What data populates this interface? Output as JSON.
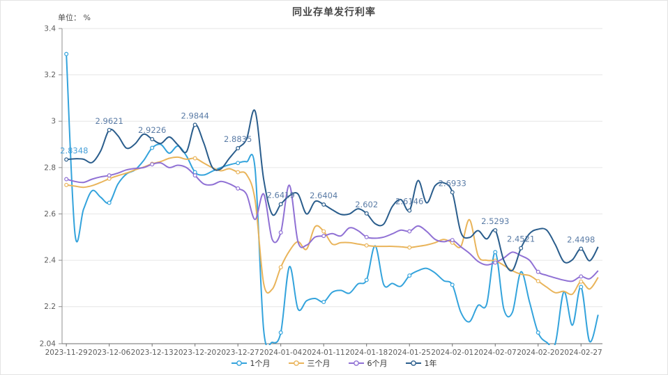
{
  "title": "同业存单发行利率",
  "unit_label": "单位： %",
  "styles": {
    "grid_color": "#e6e6e6",
    "axis_color": "#8f8f8f",
    "tick_text_color": "#5c5c5c",
    "point_label_color": "#5b7ca6",
    "first_point_label_color": "#48a0d8",
    "background": "#ffffff"
  },
  "chart_data": {
    "type": "line",
    "smooth": true,
    "grid": true,
    "legend_position": "bottom",
    "ylim": [
      2.04,
      3.4
    ],
    "y_ticks": [
      {
        "v": 3.4,
        "label": "3.4"
      },
      {
        "v": 3.2,
        "label": "3.2"
      },
      {
        "v": 3.0,
        "label": "3"
      },
      {
        "v": 2.8,
        "label": "2.8"
      },
      {
        "v": 2.6,
        "label": "2.6"
      },
      {
        "v": 2.4,
        "label": "2.4"
      },
      {
        "v": 2.2,
        "label": "2.2"
      },
      {
        "v": 2.04,
        "label": "2.04"
      }
    ],
    "x_tick_indices": [
      0,
      5,
      10,
      15,
      20,
      25,
      30,
      35,
      40,
      45,
      50,
      55,
      60
    ],
    "x_tick_labels": [
      "2023-11-29",
      "2023-12-06",
      "2023-12-13",
      "2023-12-20",
      "2023-12-27",
      "2024-01-04",
      "2024-01-11",
      "2024-01-18",
      "2024-01-25",
      "2024-02-01",
      "2024-02-07",
      "2024-02-20",
      "2024-02-27"
    ],
    "series": [
      {
        "name": "1个月",
        "color": "#33a3dc",
        "marker_indices": [
          0,
          5,
          10,
          15,
          20,
          25,
          30,
          35,
          40,
          45,
          50,
          55,
          60
        ],
        "values": [
          3.29,
          2.515,
          2.62,
          2.7,
          2.672,
          2.648,
          2.728,
          2.772,
          2.79,
          2.83,
          2.885,
          2.9,
          2.862,
          2.893,
          2.85,
          2.78,
          2.768,
          2.784,
          2.8,
          2.812,
          2.82,
          2.825,
          2.795,
          2.1,
          2.046,
          2.088,
          2.372,
          2.19,
          2.225,
          2.235,
          2.22,
          2.262,
          2.27,
          2.258,
          2.298,
          2.315,
          2.462,
          2.295,
          2.3,
          2.288,
          2.334,
          2.355,
          2.365,
          2.345,
          2.312,
          2.294,
          2.175,
          2.135,
          2.205,
          2.21,
          2.435,
          2.19,
          2.175,
          2.35,
          2.22,
          2.088,
          2.046,
          2.04,
          2.264,
          2.12,
          2.285,
          2.05,
          2.165
        ]
      },
      {
        "name": "三个月",
        "color": "#e9b45a",
        "marker_indices": [
          0,
          5,
          10,
          15,
          20,
          25,
          30,
          35,
          40,
          45,
          50,
          55,
          60
        ],
        "values": [
          2.725,
          2.72,
          2.715,
          2.722,
          2.736,
          2.752,
          2.765,
          2.776,
          2.79,
          2.802,
          2.816,
          2.826,
          2.84,
          2.845,
          2.836,
          2.84,
          2.82,
          2.8,
          2.786,
          2.795,
          2.78,
          2.77,
          2.66,
          2.3,
          2.275,
          2.37,
          2.44,
          2.48,
          2.448,
          2.545,
          2.525,
          2.47,
          2.476,
          2.476,
          2.47,
          2.464,
          2.46,
          2.46,
          2.46,
          2.458,
          2.455,
          2.46,
          2.466,
          2.476,
          2.49,
          2.476,
          2.46,
          2.575,
          2.42,
          2.4,
          2.398,
          2.378,
          2.355,
          2.34,
          2.334,
          2.31,
          2.284,
          2.26,
          2.266,
          2.254,
          2.308,
          2.276,
          2.326
        ]
      },
      {
        "name": "6个月",
        "color": "#8f70d4",
        "marker_indices": [
          0,
          5,
          10,
          15,
          20,
          25,
          30,
          35,
          40,
          45,
          50,
          55,
          60
        ],
        "values": [
          2.75,
          2.74,
          2.736,
          2.75,
          2.76,
          2.766,
          2.776,
          2.79,
          2.796,
          2.8,
          2.814,
          2.82,
          2.8,
          2.81,
          2.8,
          2.766,
          2.73,
          2.726,
          2.74,
          2.73,
          2.71,
          2.685,
          2.576,
          2.686,
          2.49,
          2.52,
          2.724,
          2.48,
          2.465,
          2.5,
          2.505,
          2.515,
          2.505,
          2.54,
          2.528,
          2.5,
          2.495,
          2.5,
          2.514,
          2.53,
          2.525,
          2.548,
          2.525,
          2.49,
          2.48,
          2.487,
          2.458,
          2.43,
          2.395,
          2.38,
          2.39,
          2.41,
          2.435,
          2.42,
          2.4,
          2.35,
          2.335,
          2.324,
          2.314,
          2.31,
          2.33,
          2.32,
          2.355
        ]
      },
      {
        "name": "1年",
        "color": "#2a5d8c",
        "marker_indices": [
          0,
          5,
          10,
          15,
          20,
          25,
          30,
          35,
          40,
          45,
          50,
          53,
          60
        ],
        "point_labels": [
          {
            "i": 0,
            "text": "2.8348"
          },
          {
            "i": 5,
            "text": "2.9621"
          },
          {
            "i": 10,
            "text": "2.9226"
          },
          {
            "i": 15,
            "text": "2.9844"
          },
          {
            "i": 20,
            "text": "2.8835"
          },
          {
            "i": 25,
            "text": "2.6419"
          },
          {
            "i": 30,
            "text": "2.6404"
          },
          {
            "i": 35,
            "text": "2.602"
          },
          {
            "i": 40,
            "text": "2.6146"
          },
          {
            "i": 45,
            "text": "2.6933"
          },
          {
            "i": 50,
            "text": "2.5293"
          },
          {
            "i": 53,
            "text": "2.4521"
          },
          {
            "i": 60,
            "text": "2.4498"
          }
        ],
        "values": [
          2.8348,
          2.838,
          2.836,
          2.822,
          2.872,
          2.9621,
          2.938,
          2.884,
          2.902,
          2.944,
          2.9226,
          2.904,
          2.932,
          2.898,
          2.868,
          2.9844,
          2.908,
          2.802,
          2.794,
          2.84,
          2.8835,
          2.922,
          3.044,
          2.75,
          2.598,
          2.6419,
          2.678,
          2.686,
          2.6,
          2.654,
          2.6404,
          2.618,
          2.598,
          2.6,
          2.622,
          2.602,
          2.558,
          2.556,
          2.632,
          2.662,
          2.6146,
          2.744,
          2.648,
          2.722,
          2.734,
          2.6933,
          2.52,
          2.498,
          2.528,
          2.492,
          2.5293,
          2.4,
          2.356,
          2.4521,
          2.515,
          2.534,
          2.53,
          2.468,
          2.394,
          2.402,
          2.4498,
          2.398,
          2.458
        ]
      }
    ]
  }
}
